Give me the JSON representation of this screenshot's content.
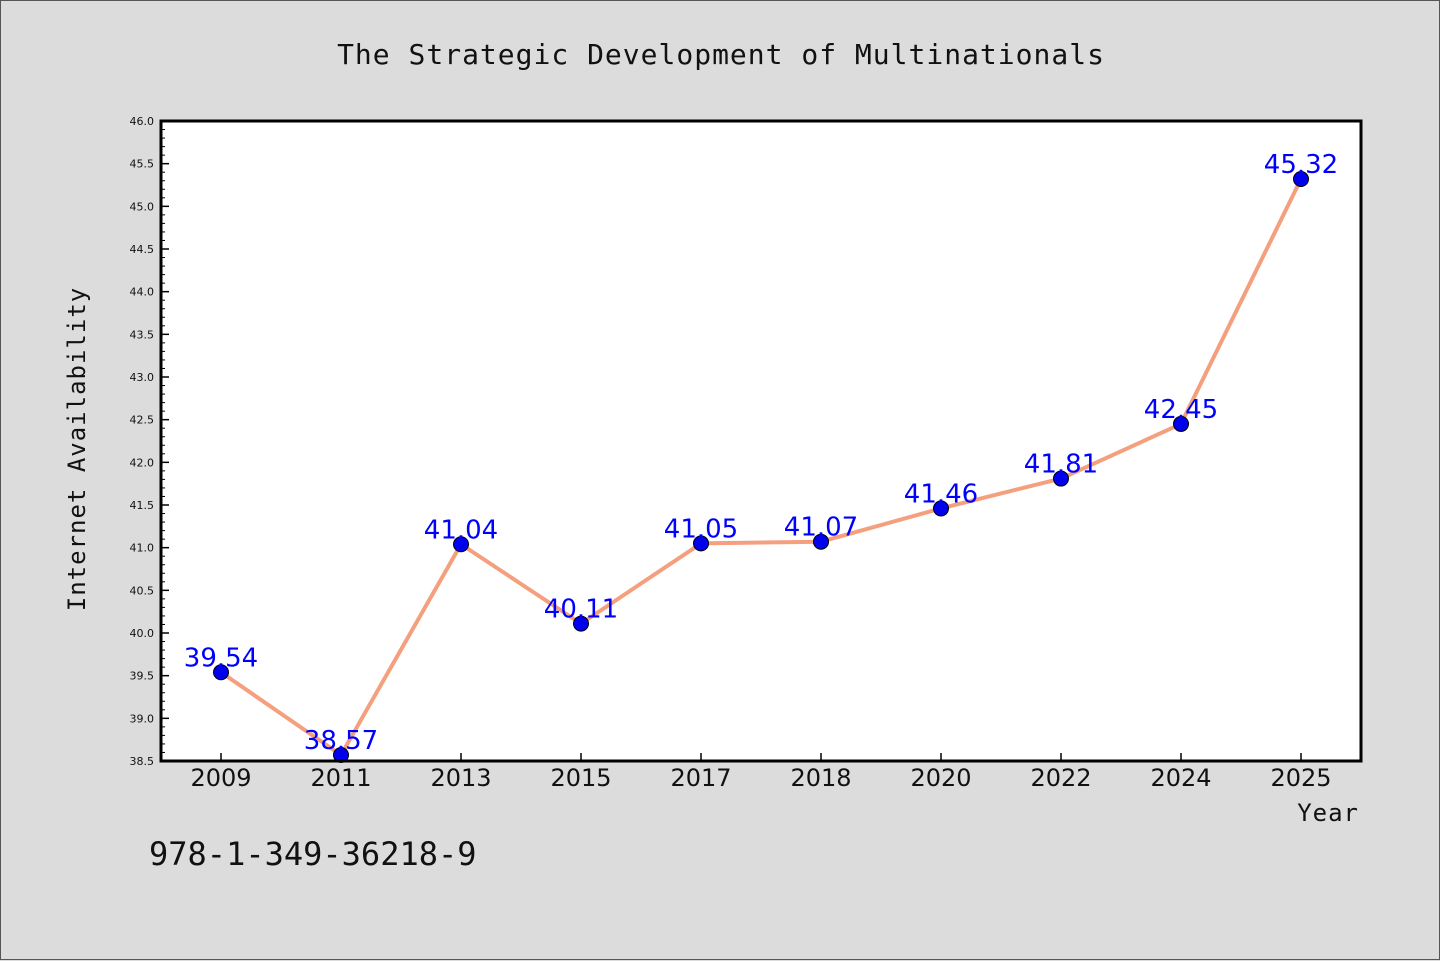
{
  "chart_data": {
    "type": "line",
    "title": "The Strategic Development of Multinationals",
    "xlabel": "Year",
    "ylabel": "Internet Availability",
    "categories": [
      "2009",
      "2011",
      "2013",
      "2015",
      "2017",
      "2018",
      "2020",
      "2022",
      "2024",
      "2025"
    ],
    "series": [
      {
        "values": [
          39.54,
          38.57,
          41.04,
          40.11,
          41.05,
          41.07,
          41.46,
          41.81,
          42.45,
          45.32
        ],
        "labels": [
          "39.54",
          "38.57",
          "41.04",
          "40.11",
          "41.05",
          "41.07",
          "41.46",
          "41.81",
          "42.45",
          "45.32"
        ],
        "line_color": "#f4a07e",
        "marker_color": "#0000ee"
      }
    ],
    "ylim": [
      38.5,
      46.0
    ],
    "yticks": [
      "38.5",
      "39.0",
      "39.5",
      "40.0",
      "40.5",
      "41.0",
      "41.5",
      "42.0",
      "42.5",
      "43.0",
      "43.5",
      "44.0",
      "44.5",
      "45.0",
      "45.5",
      "46.0"
    ],
    "grid": false,
    "data_label_color": "#0000ff",
    "background_color": "#dcdcdc",
    "plot_background_color": "#ffffff"
  },
  "footer": {
    "isbn": "978-1-349-36218-9"
  }
}
